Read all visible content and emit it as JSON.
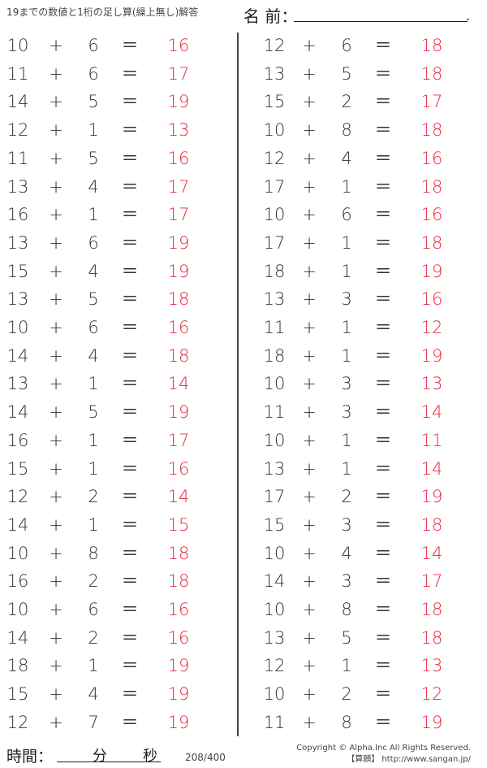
{
  "header": {
    "title": "19までの数値と1桁の足し算(繰上無し)解答",
    "name_label": "名 前：",
    "name_end": "."
  },
  "colors": {
    "answer": "#e8283c"
  },
  "symbols": {
    "plus": "+",
    "equals": "＝"
  },
  "left": [
    [
      10,
      6,
      16
    ],
    [
      11,
      6,
      17
    ],
    [
      14,
      5,
      19
    ],
    [
      12,
      1,
      13
    ],
    [
      11,
      5,
      16
    ],
    [
      13,
      4,
      17
    ],
    [
      16,
      1,
      17
    ],
    [
      13,
      6,
      19
    ],
    [
      15,
      4,
      19
    ],
    [
      13,
      5,
      18
    ],
    [
      10,
      6,
      16
    ],
    [
      14,
      4,
      18
    ],
    [
      13,
      1,
      14
    ],
    [
      14,
      5,
      19
    ],
    [
      16,
      1,
      17
    ],
    [
      15,
      1,
      16
    ],
    [
      12,
      2,
      14
    ],
    [
      14,
      1,
      15
    ],
    [
      10,
      8,
      18
    ],
    [
      16,
      2,
      18
    ],
    [
      10,
      6,
      16
    ],
    [
      14,
      2,
      16
    ],
    [
      18,
      1,
      19
    ],
    [
      15,
      4,
      19
    ],
    [
      12,
      7,
      19
    ]
  ],
  "right": [
    [
      12,
      6,
      18
    ],
    [
      13,
      5,
      18
    ],
    [
      15,
      2,
      17
    ],
    [
      10,
      8,
      18
    ],
    [
      12,
      4,
      16
    ],
    [
      17,
      1,
      18
    ],
    [
      10,
      6,
      16
    ],
    [
      17,
      1,
      18
    ],
    [
      18,
      1,
      19
    ],
    [
      13,
      3,
      16
    ],
    [
      11,
      1,
      12
    ],
    [
      18,
      1,
      19
    ],
    [
      10,
      3,
      13
    ],
    [
      11,
      3,
      14
    ],
    [
      10,
      1,
      11
    ],
    [
      13,
      1,
      14
    ],
    [
      17,
      2,
      19
    ],
    [
      15,
      3,
      18
    ],
    [
      10,
      4,
      14
    ],
    [
      14,
      3,
      17
    ],
    [
      10,
      8,
      18
    ],
    [
      13,
      5,
      18
    ],
    [
      12,
      1,
      13
    ],
    [
      10,
      2,
      12
    ],
    [
      11,
      8,
      19
    ]
  ],
  "footer": {
    "time_label": "時間：",
    "minutes": "分",
    "seconds": "秒",
    "page": "208/400",
    "copyright": "Copyright © Alpha.Inc All Rights Reserved.",
    "site": "【算願】 http://www.sangan.jp/"
  }
}
